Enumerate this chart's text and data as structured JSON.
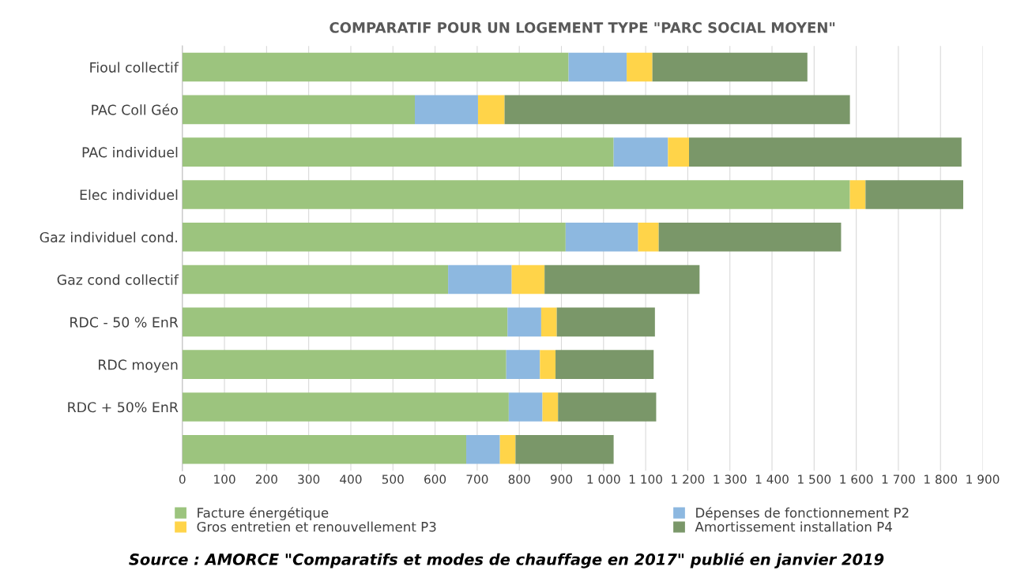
{
  "chart_data": {
    "type": "bar",
    "orientation": "horizontal",
    "stacked": true,
    "title": "COMPARATIF POUR UN LOGEMENT TYPE \"PARC SOCIAL MOYEN\"",
    "categories": [
      "Fioul collectif",
      "PAC Coll Géo",
      "PAC individuel",
      "Elec individuel",
      "Gaz individuel cond.",
      "Gaz cond collectif",
      "RDC - 50 % EnR",
      "RDC moyen",
      "RDC + 50% EnR",
      null
    ],
    "series": [
      {
        "name": "Facture énergétique",
        "color": "#9cc47e",
        "values": [
          917,
          552,
          1024,
          1585,
          910,
          631,
          772,
          769,
          775,
          674
        ]
      },
      {
        "name": "Dépenses de fonctionnement P2",
        "color": "#8db8e0",
        "values": [
          138,
          150,
          129,
          0,
          172,
          151,
          80,
          80,
          80,
          80
        ]
      },
      {
        "name": "Gros entretien et renouvellement P3",
        "color": "#ffd449",
        "values": [
          61,
          63,
          50,
          37,
          49,
          78,
          37,
          37,
          37,
          37
        ]
      },
      {
        "name": "Amortissement installation P4",
        "color": "#7a9769",
        "values": [
          368,
          820,
          647,
          232,
          433,
          368,
          233,
          233,
          233,
          233
        ]
      }
    ],
    "xlim": [
      0,
      1900
    ],
    "xticks": [
      0,
      100,
      200,
      300,
      400,
      500,
      600,
      700,
      800,
      900,
      {
        "value": 1000,
        "label": "1 000"
      },
      {
        "value": 1100,
        "label": "1 100"
      },
      {
        "value": 1200,
        "label": "1 200"
      },
      {
        "value": 1300,
        "label": "1 300"
      },
      {
        "value": 1400,
        "label": "1 400"
      },
      {
        "value": 1500,
        "label": "1 500"
      },
      {
        "value": 1600,
        "label": "1 600"
      },
      {
        "value": 1700,
        "label": "1 700"
      },
      {
        "value": 1800,
        "label": "1 800"
      },
      {
        "value": 1900,
        "label": "1 900"
      }
    ],
    "grid": "x",
    "legend": "bottom",
    "annotations": [
      "Source : AMORCE \"Comparatifs et modes de chauffage en 2017\" publié en janvier 2019"
    ]
  }
}
